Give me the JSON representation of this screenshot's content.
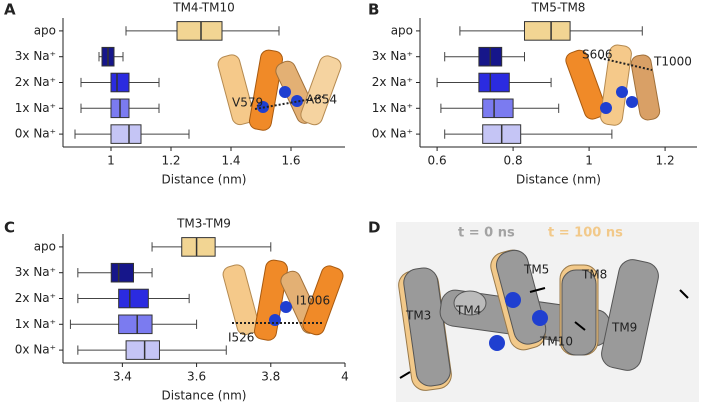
{
  "chart_data": [
    {
      "type": "box",
      "title": "TM4-TM10",
      "x_label": "Distance (nm)",
      "categories": [
        "apo",
        "3x Na⁺",
        "2x Na⁺",
        "1x Na⁺",
        "0x Na⁺"
      ],
      "colors": [
        "#f2d593",
        "#16168a",
        "#2b2be0",
        "#7b7bf0",
        "#c5c5f5"
      ],
      "boxes": [
        {
          "min": 1.05,
          "q1": 1.22,
          "median": 1.3,
          "q3": 1.37,
          "max": 1.56
        },
        {
          "min": 0.96,
          "q1": 0.97,
          "median": 0.99,
          "q3": 1.01,
          "max": 1.04
        },
        {
          "min": 0.9,
          "q1": 1.0,
          "median": 1.02,
          "q3": 1.06,
          "max": 1.16
        },
        {
          "min": 0.9,
          "q1": 1.0,
          "median": 1.03,
          "q3": 1.06,
          "max": 1.16
        },
        {
          "min": 0.88,
          "q1": 1.0,
          "median": 1.06,
          "q3": 1.1,
          "max": 1.26
        }
      ],
      "xlim": [
        0.84,
        1.78
      ],
      "xticks": [
        1.0,
        1.2,
        1.4,
        1.6
      ],
      "annotations": [
        "V579",
        "A854"
      ]
    },
    {
      "type": "box",
      "title": "TM5-TM8",
      "x_label": "Distance (nm)",
      "categories": [
        "apo",
        "3x Na⁺",
        "2x Na⁺",
        "1x Na⁺",
        "0x Na⁺"
      ],
      "colors": [
        "#f2d593",
        "#16168a",
        "#2b2be0",
        "#7b7bf0",
        "#c5c5f5"
      ],
      "boxes": [
        {
          "min": 0.66,
          "q1": 0.83,
          "median": 0.9,
          "q3": 0.95,
          "max": 1.14
        },
        {
          "min": 0.62,
          "q1": 0.71,
          "median": 0.74,
          "q3": 0.77,
          "max": 0.83
        },
        {
          "min": 0.6,
          "q1": 0.71,
          "median": 0.74,
          "q3": 0.79,
          "max": 0.9
        },
        {
          "min": 0.61,
          "q1": 0.72,
          "median": 0.75,
          "q3": 0.8,
          "max": 0.92
        },
        {
          "min": 0.62,
          "q1": 0.72,
          "median": 0.77,
          "q3": 0.82,
          "max": 1.06
        }
      ],
      "xlim": [
        0.555,
        1.284
      ],
      "xticks": [
        0.6,
        0.8,
        1.0,
        1.2
      ],
      "annotations": [
        "S606",
        "T1000"
      ]
    },
    {
      "type": "box",
      "title": "TM3-TM9",
      "x_label": "Distance (nm)",
      "categories": [
        "apo",
        "3x Na⁺",
        "2x Na⁺",
        "1x Na⁺",
        "0x Na⁺"
      ],
      "colors": [
        "#f2d593",
        "#16168a",
        "#2b2be0",
        "#7b7bf0",
        "#c5c5f5"
      ],
      "boxes": [
        {
          "min": 3.48,
          "q1": 3.56,
          "median": 3.6,
          "q3": 3.65,
          "max": 3.8
        },
        {
          "min": 3.28,
          "q1": 3.37,
          "median": 3.39,
          "q3": 3.43,
          "max": 3.48
        },
        {
          "min": 3.28,
          "q1": 3.39,
          "median": 3.42,
          "q3": 3.47,
          "max": 3.58
        },
        {
          "min": 3.26,
          "q1": 3.39,
          "median": 3.44,
          "q3": 3.48,
          "max": 3.6
        },
        {
          "min": 3.28,
          "q1": 3.41,
          "median": 3.46,
          "q3": 3.5,
          "max": 3.68
        }
      ],
      "xlim": [
        3.24,
        4.0
      ],
      "xticks": [
        3.4,
        3.6,
        3.8,
        4.0
      ],
      "annotations": [
        "I1006",
        "I526"
      ]
    }
  ],
  "panel_labels": [
    "A",
    "B",
    "C",
    "D"
  ],
  "panel_d": {
    "legend": [
      "t = 0 ns",
      "t = 100 ns"
    ],
    "helices": [
      "TM5",
      "TM8",
      "TM4",
      "TM3",
      "TM9",
      "TM10"
    ]
  }
}
